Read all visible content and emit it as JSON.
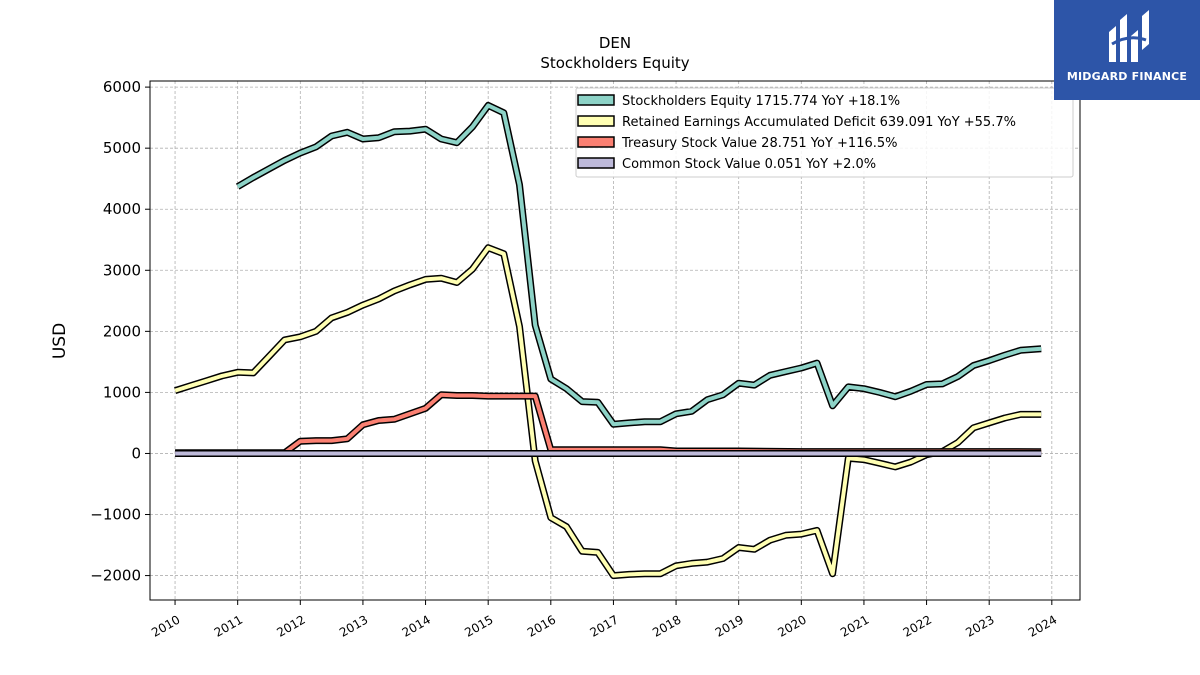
{
  "brand": {
    "name": "MIDGARD FINANCE",
    "color": "#2d55a8"
  },
  "chart_data": {
    "type": "line",
    "title": "DEN",
    "subtitle": "Stockholders  Equity",
    "xlabel": "",
    "ylabel": "USD",
    "xlim": [
      2009.6,
      2024.45
    ],
    "ylim": [
      -2400,
      6100
    ],
    "yticks": [
      6000,
      5000,
      4000,
      3000,
      2000,
      1000,
      0,
      -1000,
      -2000
    ],
    "xticks": [
      "2010",
      "2011",
      "2012",
      "2013",
      "2014",
      "2015",
      "2016",
      "2017",
      "2018",
      "2019",
      "2020",
      "2021",
      "2022",
      "2023",
      "2024"
    ],
    "grid": true,
    "legend_position": "top-right",
    "series": [
      {
        "name": "Stockholders Equity  1715.774 YoY +18.1%",
        "color": "#8dd3c7",
        "x": [
          2011.0,
          2011.25,
          2011.5,
          2011.75,
          2012.0,
          2012.25,
          2012.5,
          2012.75,
          2013.0,
          2013.25,
          2013.5,
          2013.75,
          2014.0,
          2014.25,
          2014.5,
          2014.75,
          2015.0,
          2015.25,
          2015.5,
          2015.75,
          2016.0,
          2016.25,
          2016.5,
          2016.75,
          2017.0,
          2017.25,
          2017.5,
          2017.75,
          2018.0,
          2018.25,
          2018.5,
          2018.75,
          2019.0,
          2019.25,
          2019.5,
          2019.75,
          2020.0,
          2020.25,
          2020.5,
          2020.75,
          2021.0,
          2021.25,
          2021.5,
          2021.75,
          2022.0,
          2022.25,
          2022.5,
          2022.75,
          2023.0,
          2023.25,
          2023.5,
          2023.83
        ],
        "y": [
          4370,
          4520,
          4660,
          4800,
          4920,
          5020,
          5200,
          5260,
          5150,
          5170,
          5270,
          5280,
          5310,
          5150,
          5090,
          5350,
          5700,
          5580,
          4400,
          2100,
          1220,
          1060,
          850,
          840,
          480,
          500,
          520,
          520,
          650,
          690,
          880,
          960,
          1150,
          1120,
          1280,
          1340,
          1400,
          1480,
          780,
          1090,
          1060,
          1000,
          930,
          1020,
          1130,
          1140,
          1260,
          1440,
          1520,
          1610,
          1690,
          1715
        ]
      },
      {
        "name": "Retained Earnings Accumulated Deficit  639.091 YoY +55.7%",
        "color": "#ffffb3",
        "x": [
          2010.0,
          2010.25,
          2010.5,
          2010.75,
          2011.0,
          2011.25,
          2011.5,
          2011.75,
          2012.0,
          2012.25,
          2012.5,
          2012.75,
          2013.0,
          2013.25,
          2013.5,
          2013.75,
          2014.0,
          2014.25,
          2014.5,
          2014.75,
          2015.0,
          2015.25,
          2015.5,
          2015.75,
          2016.0,
          2016.25,
          2016.5,
          2016.75,
          2017.0,
          2017.25,
          2017.5,
          2017.75,
          2018.0,
          2018.25,
          2018.5,
          2018.75,
          2019.0,
          2019.25,
          2019.5,
          2019.75,
          2020.0,
          2020.25,
          2020.5,
          2020.75,
          2021.0,
          2021.25,
          2021.5,
          2021.75,
          2022.0,
          2022.25,
          2022.5,
          2022.75,
          2023.0,
          2023.25,
          2023.5,
          2023.83
        ],
        "y": [
          1030,
          1110,
          1190,
          1270,
          1330,
          1320,
          1590,
          1860,
          1910,
          2000,
          2220,
          2310,
          2430,
          2530,
          2660,
          2760,
          2850,
          2870,
          2800,
          3020,
          3370,
          3270,
          2080,
          -120,
          -1050,
          -1200,
          -1600,
          -1620,
          -2000,
          -1980,
          -1970,
          -1970,
          -1840,
          -1800,
          -1780,
          -1720,
          -1540,
          -1570,
          -1420,
          -1340,
          -1320,
          -1260,
          -1970,
          -80,
          -100,
          -160,
          -220,
          -140,
          -20,
          30,
          180,
          420,
          500,
          580,
          640,
          639
        ]
      },
      {
        "name": "Treasury Stock Value  28.751 YoY +116.5%",
        "color": "#fb8072",
        "x": [
          2010.0,
          2011.0,
          2011.75,
          2012.0,
          2012.25,
          2012.5,
          2012.75,
          2013.0,
          2013.25,
          2013.5,
          2013.75,
          2014.0,
          2014.25,
          2014.5,
          2014.75,
          2015.0,
          2015.25,
          2015.5,
          2015.75,
          2016.0,
          2016.5,
          2017.0,
          2017.5,
          2017.75,
          2018.0,
          2019.0,
          2020.0,
          2021.0,
          2022.0,
          2022.25,
          2022.5,
          2023.0,
          2023.83
        ],
        "y": [
          10,
          10,
          10,
          200,
          210,
          210,
          240,
          470,
          540,
          560,
          650,
          740,
          960,
          950,
          950,
          940,
          940,
          940,
          940,
          60,
          60,
          60,
          60,
          60,
          40,
          40,
          30,
          30,
          30,
          30,
          30,
          30,
          29
        ]
      },
      {
        "name": "Common Stock Value  0.051 YoY +2.0%",
        "color": "#bebada",
        "x": [
          2010.0,
          2023.83
        ],
        "y": [
          0.05,
          0.051
        ]
      }
    ]
  }
}
